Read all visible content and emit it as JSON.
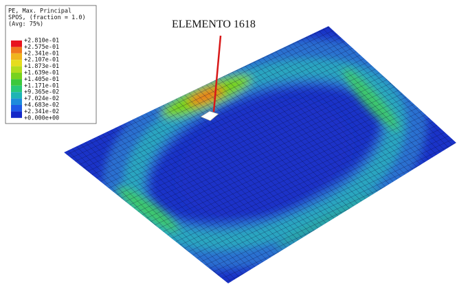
{
  "legend": {
    "title": [
      "PE, Max. Principal",
      "SPOS, (fraction = 1.0)",
      "(Avg: 75%)"
    ],
    "labels": [
      "+2.810e-01",
      "+2.575e-01",
      "+2.341e-01",
      "+2.107e-01",
      "+1.873e-01",
      "+1.639e-01",
      "+1.405e-01",
      "+1.171e-01",
      "+9.365e-02",
      "+7.024e-02",
      "+4.683e-02",
      "+2.341e-02",
      "+0.000e+00"
    ],
    "colors": [
      "#e8141e",
      "#f0781e",
      "#f0b41e",
      "#e6dc1e",
      "#b4dc1e",
      "#78d21e",
      "#3cc83c",
      "#28c878",
      "#1eb4b4",
      "#1e8cdc",
      "#1e5ae6",
      "#1428c8"
    ]
  },
  "annotation": {
    "label": "ELEMENTO 1618"
  }
}
